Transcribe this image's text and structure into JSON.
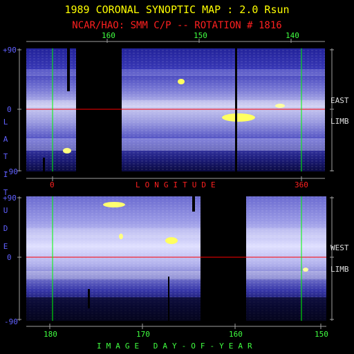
{
  "header": {
    "title": "1989 CORONAL SYNOPTIC MAP : 2.0 Rsun",
    "subtitle": "NCAR/HAO: SMM C/P -- ROTATION # 1816"
  },
  "top_panel": {
    "longitude_ticks": [
      "160",
      "150",
      "140"
    ],
    "latitude_ticks": [
      "+90",
      "0",
      "-90"
    ],
    "side_labels": [
      "EAST",
      "LIMB"
    ]
  },
  "middle_axis": {
    "left_value": "0",
    "label": "LONGITUDE",
    "right_value": "360"
  },
  "bottom_panel": {
    "latitude_ticks": [
      "+90",
      "0",
      "-90"
    ],
    "day_ticks": [
      "180",
      "170",
      "160",
      "150"
    ],
    "side_labels": [
      "WEST",
      "LIMB"
    ],
    "xlabel": "IMAGE DAY-OF-YEAR"
  },
  "vertical_label": [
    "L",
    "A",
    "T",
    "I",
    "T",
    "U",
    "D",
    "E"
  ],
  "colors": {
    "title": "#ffff00",
    "subtitle": "#ff2020",
    "equator_line": "#ff0000",
    "marker_line": "#00ff00",
    "axis_blue": "#6060ff",
    "map_base": "#2828a8",
    "map_bright": "#ffffff",
    "map_peak": "#ffff40"
  }
}
